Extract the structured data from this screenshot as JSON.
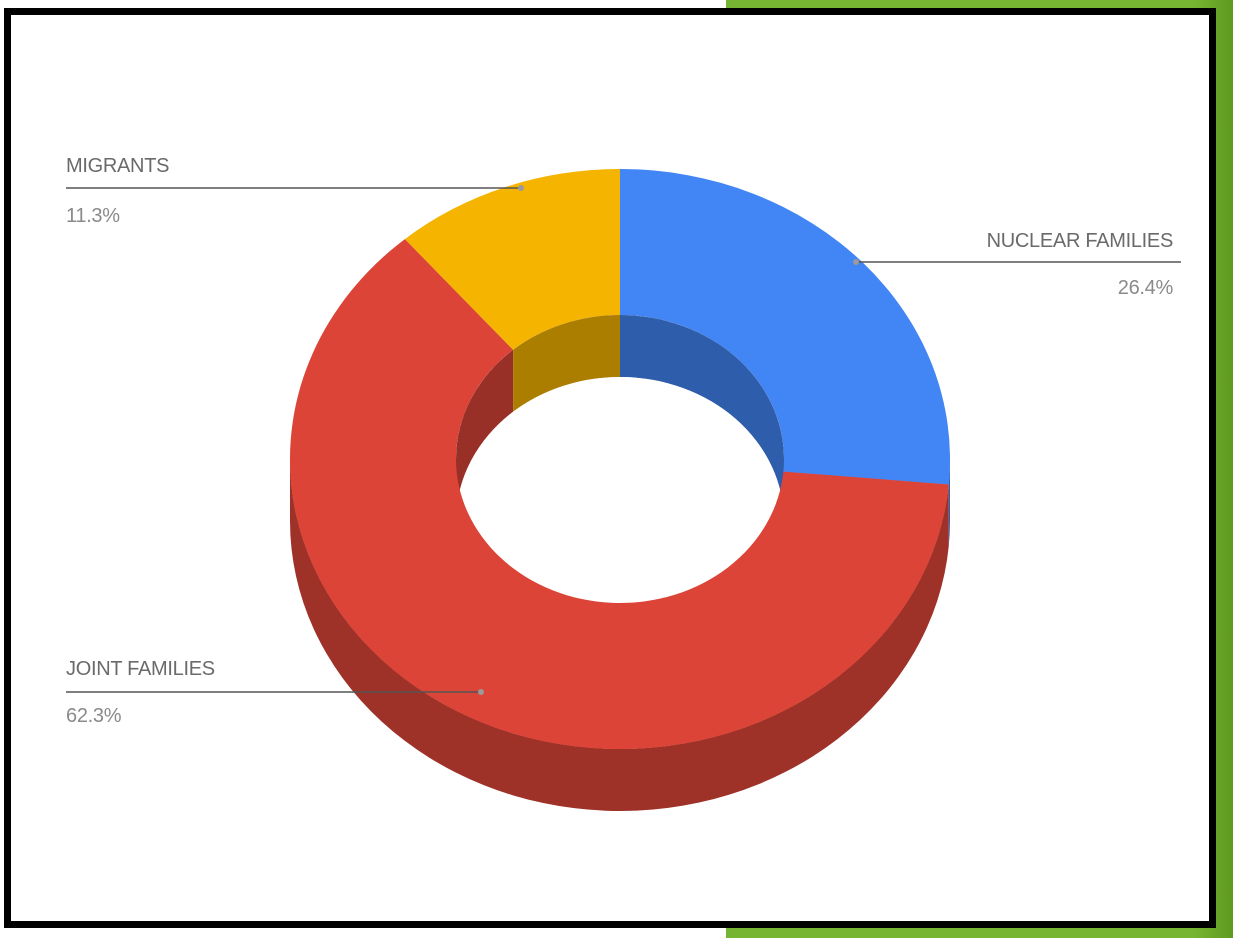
{
  "chart_data": {
    "type": "pie",
    "style": "3d-donut",
    "title": "",
    "legend": "none",
    "slices": [
      {
        "label": "NUCLEAR FAMILIES",
        "value": 26.4,
        "value_label": "26.4%",
        "color": "#4285f4"
      },
      {
        "label": "JOINT FAMILIES",
        "value": 62.3,
        "value_label": "62.3%",
        "color": "#db4437"
      },
      {
        "label": "MIGRANTS",
        "value": 11.3,
        "value_label": "11.3%",
        "color": "#f4b400"
      }
    ]
  },
  "colors": {
    "frame": "#000000",
    "accent_green": "#76b531",
    "label_text": "#6a6a6a",
    "leader_line": "#555555"
  }
}
